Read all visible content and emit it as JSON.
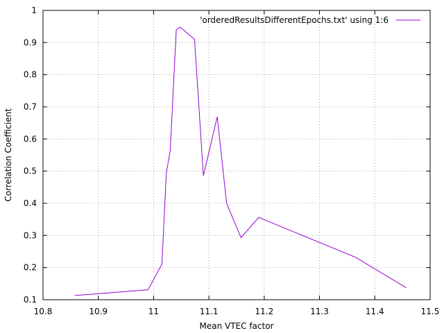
{
  "chart_data": {
    "type": "line",
    "title": "",
    "xlabel": "Mean VTEC factor",
    "ylabel": "Correlation Coefficient",
    "xlim": [
      10.8,
      11.5
    ],
    "ylim": [
      0.1,
      1.0
    ],
    "xticks": [
      "10.8",
      "10.9",
      "11",
      "11.1",
      "11.2",
      "11.3",
      "11.4",
      "11.5"
    ],
    "yticks": [
      "0.1",
      "0.2",
      "0.3",
      "0.4",
      "0.5",
      "0.6",
      "0.7",
      "0.8",
      "0.9",
      "1"
    ],
    "grid": true,
    "legend_position": "top-right",
    "series": [
      {
        "name": "'orderedResultsDifferentEpochs.txt' using 1:6",
        "color": "#9400d3",
        "x": [
          10.857,
          10.99,
          11.015,
          11.023,
          11.03,
          11.041,
          11.048,
          11.074,
          11.09,
          11.115,
          11.132,
          11.158,
          11.19,
          11.365,
          11.457
        ],
        "y": [
          0.113,
          0.131,
          0.211,
          0.495,
          0.563,
          0.94,
          0.948,
          0.91,
          0.486,
          0.669,
          0.4,
          0.293,
          0.356,
          0.232,
          0.137
        ]
      }
    ]
  }
}
